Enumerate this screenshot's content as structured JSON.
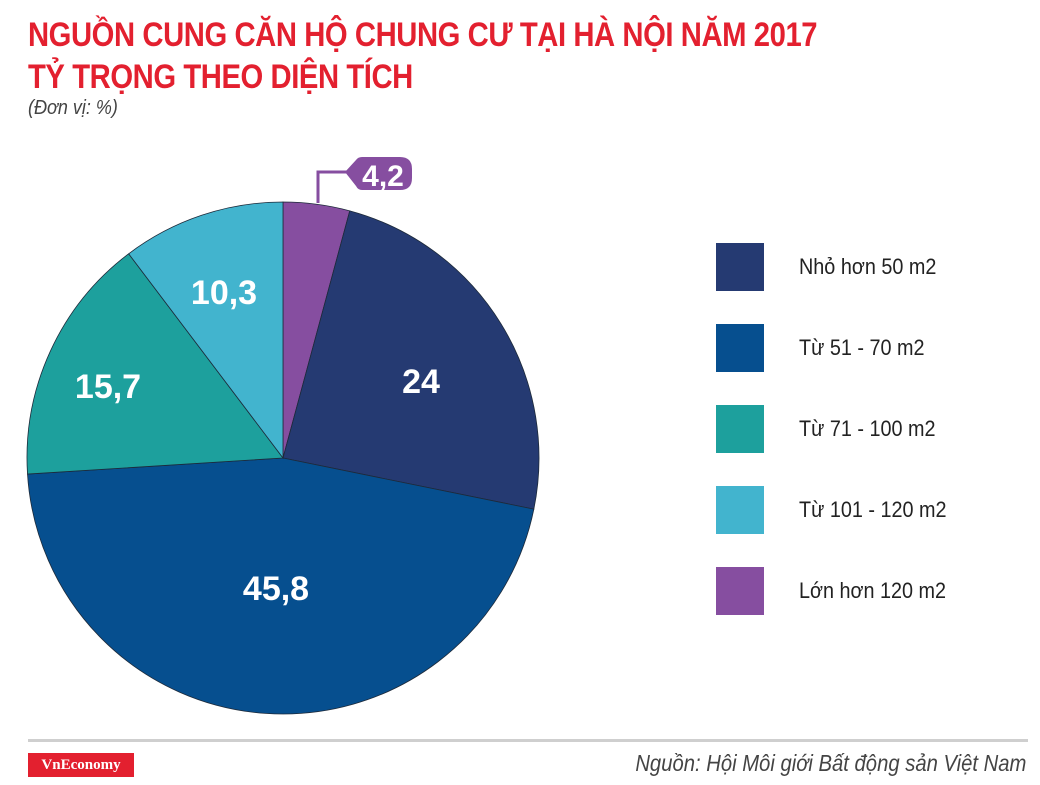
{
  "header": {
    "title_line1": "NGUỒN CUNG CĂN HỘ CHUNG CƯ TẠI HÀ NỘI NĂM 2017",
    "title_line2": "TỶ TRỌNG THEO DIỆN TÍCH",
    "unit": "(Đơn vị: %)"
  },
  "legend": [
    {
      "label": "Nhỏ hơn 50 m2",
      "color": "#253a72"
    },
    {
      "label": "Từ 51 - 70 m2",
      "color": "#064f8f"
    },
    {
      "label": "Từ 71 - 100 m2",
      "color": "#1da09d"
    },
    {
      "label": "Từ 101 - 120 m2",
      "color": "#42b4ce"
    },
    {
      "label": "Lớn hơn 120 m2",
      "color": "#864ea0"
    }
  ],
  "slice_labels": {
    "s0": "4,2",
    "s1": "24",
    "s2": "45,8",
    "s3": "15,7",
    "s4": "10,3"
  },
  "footer": {
    "brand": "VnEconomy",
    "source": "Nguồn: Hội Môi giới Bất động sản Việt Nam"
  },
  "chart_data": {
    "type": "pie",
    "title": "NGUỒN CUNG CĂN HỘ CHUNG CƯ TẠI HÀ NỘI NĂM 2017 - TỶ TRỌNG THEO DIỆN TÍCH",
    "unit": "%",
    "categories": [
      "Nhỏ hơn 50 m2",
      "Từ 51 - 70 m2",
      "Từ 71 - 100 m2",
      "Từ 101 - 120 m2",
      "Lớn hơn 120 m2"
    ],
    "values": [
      24,
      45.8,
      15.7,
      10.3,
      4.2
    ],
    "colors": [
      "#253a72",
      "#064f8f",
      "#1da09d",
      "#42b4ce",
      "#864ea0"
    ],
    "value_labels": [
      "24",
      "45,8",
      "15,7",
      "10,3",
      "4,2"
    ],
    "legend_position": "right",
    "start_angle": "top, clockwise, starting with Lớn hơn 120 m2"
  }
}
